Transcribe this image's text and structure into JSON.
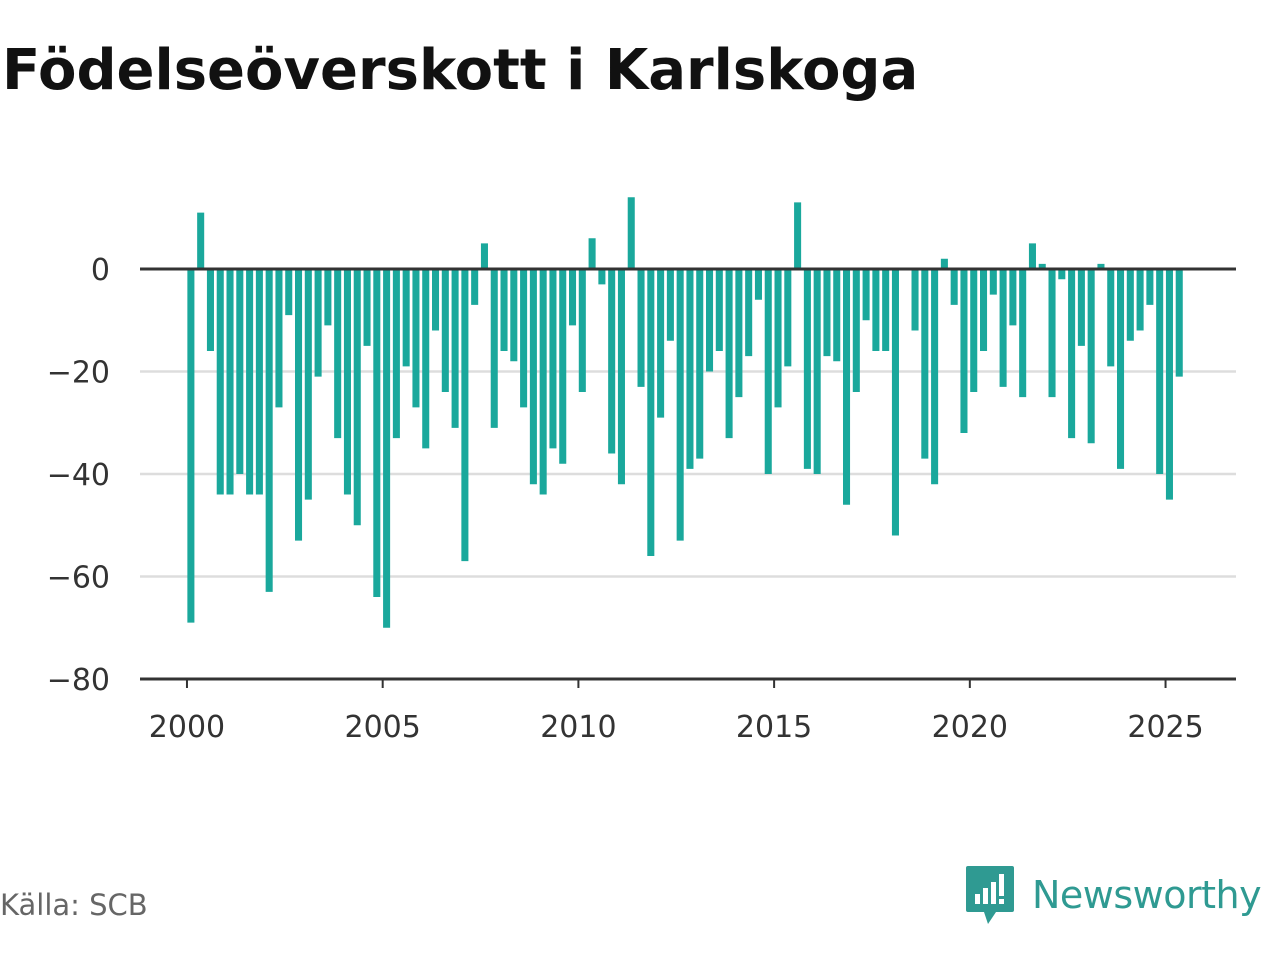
{
  "title": "Födelseöverskott i Karlskoga",
  "source": "Källa: SCB",
  "brand": {
    "name": "Newsworthy",
    "icon": "newsworthy-logo-icon"
  },
  "colors": {
    "bar": "#1aa89c",
    "brand": "#2f9a92",
    "grid": "#dddddd",
    "axis": "#333333",
    "text": "#333333"
  },
  "chart_data": {
    "type": "bar",
    "title": "Födelseöverskott i Karlskoga",
    "xlabel": "",
    "ylabel": "",
    "ylim": [
      -80,
      15
    ],
    "yticks": [
      0,
      -20,
      -40,
      -60,
      -80
    ],
    "ytick_labels": [
      "0",
      "−20",
      "−40",
      "−60",
      "−80"
    ],
    "xlim": [
      1998.8,
      2026.8
    ],
    "xticks": [
      2000,
      2005,
      2010,
      2015,
      2020,
      2025
    ],
    "xtick_labels": [
      "2000",
      "2005",
      "2010",
      "2015",
      "2020",
      "2025"
    ],
    "grid": "horizontal",
    "frequency": "quarterly",
    "x_start": 2000.1,
    "x_step": 0.25,
    "values": [
      -69,
      11,
      -16,
      -44,
      -44,
      -40,
      -44,
      -44,
      -63,
      -27,
      -9,
      -53,
      -45,
      -21,
      -11,
      -33,
      -44,
      -50,
      -15,
      -64,
      -70,
      -33,
      -19,
      -27,
      -35,
      -12,
      -24,
      -31,
      -57,
      -7,
      5,
      -31,
      -16,
      -18,
      -27,
      -42,
      -44,
      -35,
      -38,
      -11,
      -24,
      6,
      -3,
      -36,
      -42,
      14,
      -23,
      -56,
      -29,
      -14,
      -53,
      -39,
      -37,
      -20,
      -16,
      -33,
      -25,
      -17,
      -6,
      -40,
      -27,
      -19,
      13,
      -39,
      -40,
      -17,
      -18,
      -46,
      -24,
      -10,
      -16,
      -16,
      -52,
      0,
      -12,
      -37,
      -42,
      2,
      -7,
      -32,
      -24,
      -16,
      -5,
      -23,
      -11,
      -25,
      5,
      1,
      -25,
      -2,
      -33,
      -15,
      -34,
      1,
      -19,
      -39,
      -14,
      -12,
      -7,
      -40,
      -45,
      -21
    ]
  }
}
